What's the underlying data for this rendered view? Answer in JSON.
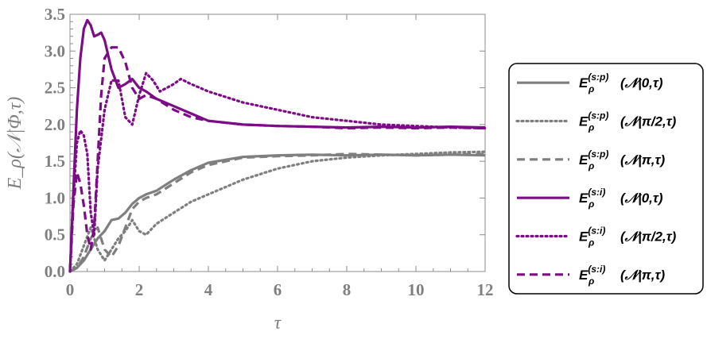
{
  "colors": {
    "sp": "#7f7f7f",
    "si": "#7b0d86",
    "axis": "#8c8c8c",
    "tick_text": "#7f7f7f"
  },
  "chart_data": {
    "type": "line",
    "title": "",
    "xlabel": "τ",
    "ylabel": "E_ρ(𝒩|Φ,τ)",
    "xlim": [
      0,
      12
    ],
    "ylim": [
      0,
      3.5
    ],
    "x_ticks": [
      0,
      2,
      4,
      6,
      8,
      10,
      12
    ],
    "y_ticks": [
      0.0,
      0.5,
      1.0,
      1.5,
      2.0,
      2.5,
      3.0,
      3.5
    ],
    "x_tick_labels": [
      "0",
      "2",
      "4",
      "6",
      "8",
      "10",
      "12"
    ],
    "y_tick_labels": [
      "0.0",
      "0.5",
      "1.0",
      "1.5",
      "2.0",
      "2.5",
      "3.0",
      "3.5"
    ],
    "grid": false,
    "legend_position": "right",
    "series": [
      {
        "name": "E_ρ^(s:p)(𝒩|0,τ)",
        "legend": {
          "base": "E",
          "sub": "ρ",
          "sup": "(s:p)",
          "arg": "(𝒩|0,τ)"
        },
        "color": "#7f7f7f",
        "dash": "solid",
        "x": [
          0,
          0.2,
          0.4,
          0.6,
          0.8,
          1.0,
          1.2,
          1.4,
          1.6,
          1.8,
          2.0,
          2.2,
          2.5,
          3.0,
          3.5,
          4.0,
          5.0,
          6.0,
          7.0,
          8.0,
          9.0,
          10.0,
          11.0,
          12.0
        ],
        "y": [
          0,
          0.05,
          0.15,
          0.3,
          0.45,
          0.55,
          0.7,
          0.72,
          0.8,
          0.92,
          1.0,
          1.05,
          1.1,
          1.25,
          1.38,
          1.48,
          1.56,
          1.58,
          1.59,
          1.58,
          1.59,
          1.58,
          1.59,
          1.58
        ]
      },
      {
        "name": "E_ρ^(s:p)(𝒩|π/2,τ)",
        "legend": {
          "base": "E",
          "sub": "ρ",
          "sup": "(s:p)",
          "arg": "(𝒩|π/2,τ)"
        },
        "color": "#7f7f7f",
        "dash": "dot",
        "x": [
          0,
          0.2,
          0.4,
          0.6,
          0.8,
          1.0,
          1.2,
          1.4,
          1.6,
          1.8,
          2.0,
          2.2,
          2.5,
          3.0,
          3.5,
          4.0,
          5.0,
          6.0,
          7.0,
          8.0,
          9.0,
          10.0,
          11.0,
          12.0
        ],
        "y": [
          0,
          0.1,
          0.35,
          0.6,
          0.3,
          0.15,
          0.3,
          0.45,
          0.55,
          0.7,
          0.55,
          0.5,
          0.65,
          0.8,
          0.95,
          1.05,
          1.25,
          1.4,
          1.5,
          1.55,
          1.58,
          1.6,
          1.62,
          1.63
        ]
      },
      {
        "name": "E_ρ^(s:p)(𝒩|π,τ)",
        "legend": {
          "base": "E",
          "sub": "ρ",
          "sup": "(s:p)",
          "arg": "(𝒩|π,τ)"
        },
        "color": "#7f7f7f",
        "dash": "dash",
        "x": [
          0,
          0.2,
          0.4,
          0.6,
          0.8,
          1.0,
          1.2,
          1.4,
          1.6,
          1.8,
          2.0,
          2.2,
          2.5,
          3.0,
          3.5,
          4.0,
          5.0,
          6.0,
          7.0,
          8.0,
          9.0,
          10.0,
          11.0,
          12.0
        ],
        "y": [
          0,
          0.05,
          0.2,
          0.45,
          0.6,
          0.3,
          0.2,
          0.35,
          0.6,
          0.85,
          0.95,
          1.0,
          1.05,
          1.2,
          1.35,
          1.45,
          1.55,
          1.57,
          1.58,
          1.6,
          1.59,
          1.58,
          1.59,
          1.6
        ]
      },
      {
        "name": "E_ρ^(s:i)(𝒩|0,τ)",
        "legend": {
          "base": "E",
          "sub": "ρ",
          "sup": "(s:i)",
          "arg": "(𝒩|0,τ)"
        },
        "color": "#7b0d86",
        "dash": "solid",
        "x": [
          0,
          0.1,
          0.2,
          0.3,
          0.4,
          0.5,
          0.6,
          0.7,
          0.8,
          0.9,
          1.0,
          1.2,
          1.4,
          1.6,
          1.8,
          2.0,
          2.2,
          2.5,
          3.0,
          3.5,
          4.0,
          5.0,
          6.0,
          7.0,
          8.0,
          9.0,
          10.0,
          11.0,
          12.0
        ],
        "y": [
          0,
          1.1,
          2.2,
          2.9,
          3.3,
          3.42,
          3.35,
          3.2,
          3.22,
          3.25,
          3.15,
          2.75,
          2.5,
          2.55,
          2.62,
          2.5,
          2.45,
          2.35,
          2.25,
          2.15,
          2.05,
          2.0,
          1.98,
          1.97,
          1.96,
          1.97,
          1.96,
          1.97,
          1.96
        ]
      },
      {
        "name": "E_ρ^(s:i)(𝒩|π/2,τ)",
        "legend": {
          "base": "E",
          "sub": "ρ",
          "sup": "(s:i)",
          "arg": "(𝒩|π/2,τ)"
        },
        "color": "#7b0d86",
        "dash": "dot",
        "x": [
          0,
          0.1,
          0.2,
          0.3,
          0.4,
          0.5,
          0.6,
          0.7,
          0.8,
          1.0,
          1.2,
          1.4,
          1.6,
          1.8,
          2.0,
          2.2,
          2.4,
          2.6,
          3.0,
          3.2,
          3.5,
          4.0,
          5.0,
          6.0,
          7.0,
          8.0,
          9.0,
          10.0,
          11.0,
          12.0
        ],
        "y": [
          0,
          1.0,
          1.75,
          1.92,
          1.85,
          1.6,
          0.8,
          0.5,
          1.4,
          2.2,
          2.6,
          2.6,
          2.1,
          2.0,
          2.4,
          2.7,
          2.6,
          2.45,
          2.55,
          2.62,
          2.55,
          2.45,
          2.3,
          2.2,
          2.1,
          2.05,
          2.0,
          1.98,
          1.96,
          1.95
        ]
      },
      {
        "name": "E_ρ^(s:i)(𝒩|π,τ)",
        "legend": {
          "base": "E",
          "sub": "ρ",
          "sup": "(s:i)",
          "arg": "(𝒩|π,τ)"
        },
        "color": "#7b0d86",
        "dash": "dash",
        "x": [
          0,
          0.1,
          0.2,
          0.3,
          0.4,
          0.5,
          0.6,
          0.7,
          0.8,
          0.9,
          1.0,
          1.2,
          1.4,
          1.6,
          1.8,
          2.0,
          2.2,
          2.5,
          3.0,
          3.5,
          4.0,
          5.0,
          6.0,
          7.0,
          8.0,
          9.0,
          10.0,
          11.0,
          12.0
        ],
        "y": [
          0,
          0.9,
          1.35,
          1.2,
          0.9,
          0.5,
          0.3,
          0.6,
          1.5,
          2.4,
          2.9,
          3.05,
          3.05,
          2.85,
          2.5,
          2.35,
          2.4,
          2.35,
          2.2,
          2.1,
          2.05,
          2.0,
          1.98,
          1.97,
          1.95,
          1.96,
          1.95,
          1.96,
          1.95
        ]
      }
    ]
  }
}
